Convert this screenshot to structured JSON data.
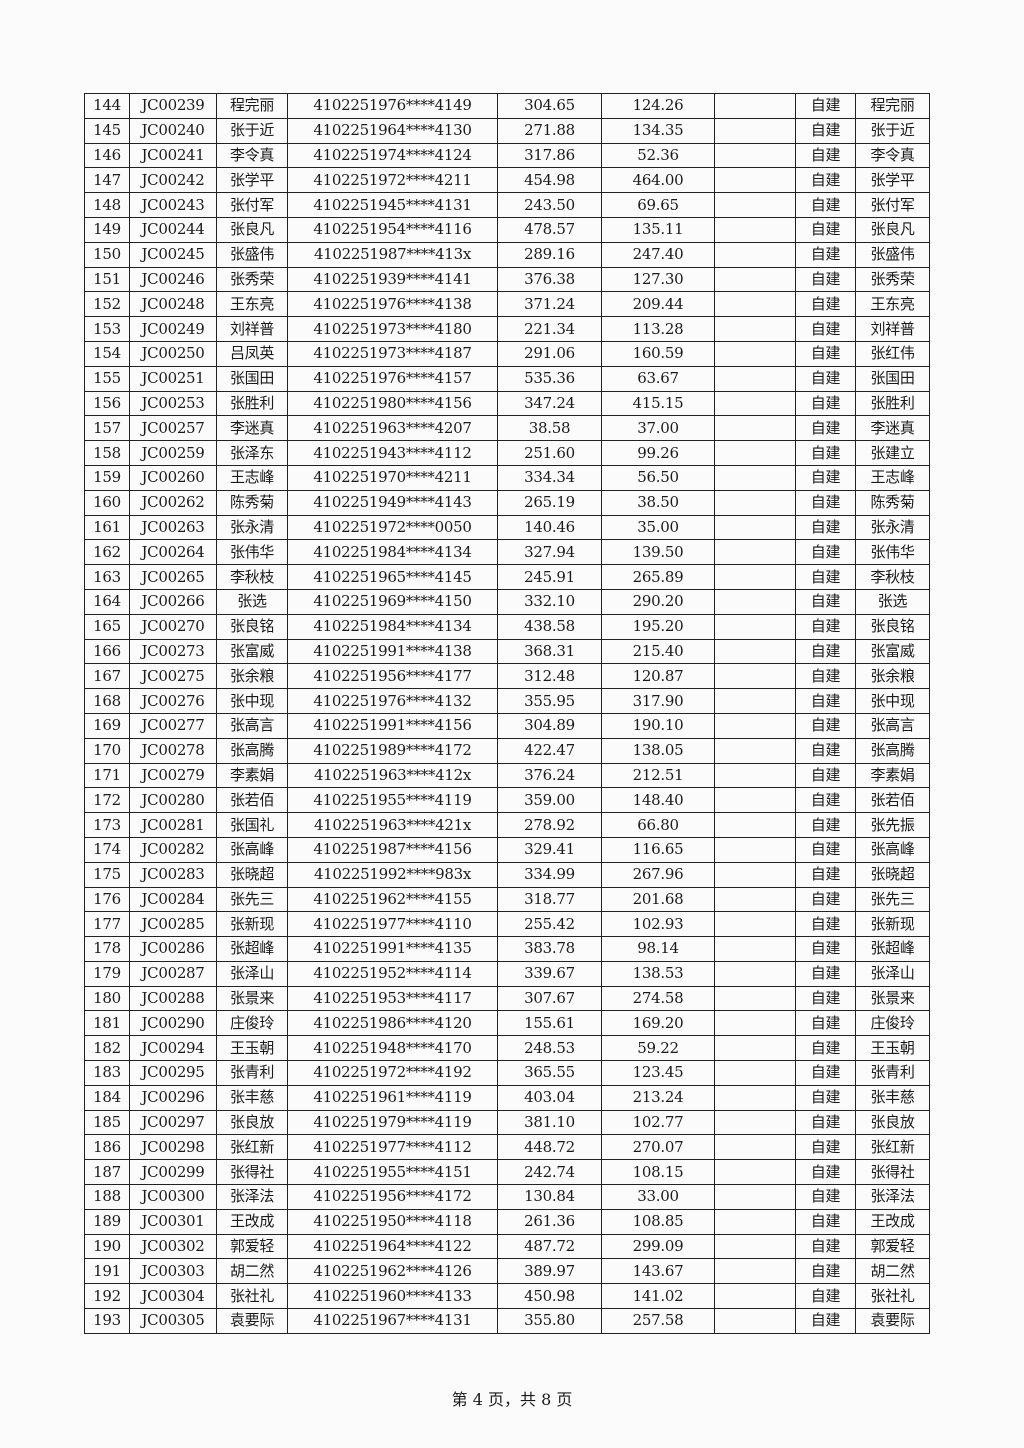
{
  "rows": [
    [
      "144",
      "JC00239",
      "程完丽",
      "4102251976****4149",
      "304.65",
      "124.26",
      "",
      "自建",
      "程完丽"
    ],
    [
      "145",
      "JC00240",
      "张于近",
      "4102251964****4130",
      "271.88",
      "134.35",
      "",
      "自建",
      "张于近"
    ],
    [
      "146",
      "JC00241",
      "李令真",
      "4102251974****4124",
      "317.86",
      "52.36",
      "",
      "自建",
      "李令真"
    ],
    [
      "147",
      "JC00242",
      "张学平",
      "4102251972****4211",
      "454.98",
      "464.00",
      "",
      "自建",
      "张学平"
    ],
    [
      "148",
      "JC00243",
      "张付军",
      "4102251945****4131",
      "243.50",
      "69.65",
      "",
      "自建",
      "张付军"
    ],
    [
      "149",
      "JC00244",
      "张良凡",
      "4102251954****4116",
      "478.57",
      "135.11",
      "",
      "自建",
      "张良凡"
    ],
    [
      "150",
      "JC00245",
      "张盛伟",
      "4102251987****413x",
      "289.16",
      "247.40",
      "",
      "自建",
      "张盛伟"
    ],
    [
      "151",
      "JC00246",
      "张秀荣",
      "4102251939****4141",
      "376.38",
      "127.30",
      "",
      "自建",
      "张秀荣"
    ],
    [
      "152",
      "JC00248",
      "王东亮",
      "4102251976****4138",
      "371.24",
      "209.44",
      "",
      "自建",
      "王东亮"
    ],
    [
      "153",
      "JC00249",
      "刘祥普",
      "4102251973****4180",
      "221.34",
      "113.28",
      "",
      "自建",
      "刘祥普"
    ],
    [
      "154",
      "JC00250",
      "吕凤英",
      "4102251973****4187",
      "291.06",
      "160.59",
      "",
      "自建",
      "张红伟"
    ],
    [
      "155",
      "JC00251",
      "张国田",
      "4102251976****4157",
      "535.36",
      "63.67",
      "",
      "自建",
      "张国田"
    ],
    [
      "156",
      "JC00253",
      "张胜利",
      "4102251980****4156",
      "347.24",
      "415.15",
      "",
      "自建",
      "张胜利"
    ],
    [
      "157",
      "JC00257",
      "李迷真",
      "4102251963****4207",
      "38.58",
      "37.00",
      "",
      "自建",
      "李迷真"
    ],
    [
      "158",
      "JC00259",
      "张泽东",
      "4102251943****4112",
      "251.60",
      "99.26",
      "",
      "自建",
      "张建立"
    ],
    [
      "159",
      "JC00260",
      "王志峰",
      "4102251970****4211",
      "334.34",
      "56.50",
      "",
      "自建",
      "王志峰"
    ],
    [
      "160",
      "JC00262",
      "陈秀菊",
      "4102251949****4143",
      "265.19",
      "38.50",
      "",
      "自建",
      "陈秀菊"
    ],
    [
      "161",
      "JC00263",
      "张永清",
      "4102251972****0050",
      "140.46",
      "35.00",
      "",
      "自建",
      "张永清"
    ],
    [
      "162",
      "JC00264",
      "张伟华",
      "4102251984****4134",
      "327.94",
      "139.50",
      "",
      "自建",
      "张伟华"
    ],
    [
      "163",
      "JC00265",
      "李秋枝",
      "4102251965****4145",
      "245.91",
      "265.89",
      "",
      "自建",
      "李秋枝"
    ],
    [
      "164",
      "JC00266",
      "张选",
      "4102251969****4150",
      "332.10",
      "290.20",
      "",
      "自建",
      "张选"
    ],
    [
      "165",
      "JC00270",
      "张良铭",
      "4102251984****4134",
      "438.58",
      "195.20",
      "",
      "自建",
      "张良铭"
    ],
    [
      "166",
      "JC00273",
      "张富威",
      "4102251991****4138",
      "368.31",
      "215.40",
      "",
      "自建",
      "张富威"
    ],
    [
      "167",
      "JC00275",
      "张余粮",
      "4102251956****4177",
      "312.48",
      "120.87",
      "",
      "自建",
      "张余粮"
    ],
    [
      "168",
      "JC00276",
      "张中现",
      "4102251976****4132",
      "355.95",
      "317.90",
      "",
      "自建",
      "张中现"
    ],
    [
      "169",
      "JC00277",
      "张高言",
      "4102251991****4156",
      "304.89",
      "190.10",
      "",
      "自建",
      "张高言"
    ],
    [
      "170",
      "JC00278",
      "张高腾",
      "4102251989****4172",
      "422.47",
      "138.05",
      "",
      "自建",
      "张高腾"
    ],
    [
      "171",
      "JC00279",
      "李素娟",
      "4102251963****412x",
      "376.24",
      "212.51",
      "",
      "自建",
      "李素娟"
    ],
    [
      "172",
      "JC00280",
      "张若佰",
      "4102251955****4119",
      "359.00",
      "148.40",
      "",
      "自建",
      "张若佰"
    ],
    [
      "173",
      "JC00281",
      "张国礼",
      "4102251963****421x",
      "278.92",
      "66.80",
      "",
      "自建",
      "张先振"
    ],
    [
      "174",
      "JC00282",
      "张高峰",
      "4102251987****4156",
      "329.41",
      "116.65",
      "",
      "自建",
      "张高峰"
    ],
    [
      "175",
      "JC00283",
      "张晓超",
      "4102251992****983x",
      "334.99",
      "267.96",
      "",
      "自建",
      "张晓超"
    ],
    [
      "176",
      "JC00284",
      "张先三",
      "4102251962****4155",
      "318.77",
      "201.68",
      "",
      "自建",
      "张先三"
    ],
    [
      "177",
      "JC00285",
      "张新现",
      "4102251977****4110",
      "255.42",
      "102.93",
      "",
      "自建",
      "张新现"
    ],
    [
      "178",
      "JC00286",
      "张超峰",
      "4102251991****4135",
      "383.78",
      "98.14",
      "",
      "自建",
      "张超峰"
    ],
    [
      "179",
      "JC00287",
      "张泽山",
      "4102251952****4114",
      "339.67",
      "138.53",
      "",
      "自建",
      "张泽山"
    ],
    [
      "180",
      "JC00288",
      "张景来",
      "4102251953****4117",
      "307.67",
      "274.58",
      "",
      "自建",
      "张景来"
    ],
    [
      "181",
      "JC00290",
      "庄俊玲",
      "4102251986****4120",
      "155.61",
      "169.20",
      "",
      "自建",
      "庄俊玲"
    ],
    [
      "182",
      "JC00294",
      "王玉朝",
      "4102251948****4170",
      "248.53",
      "59.22",
      "",
      "自建",
      "王玉朝"
    ],
    [
      "183",
      "JC00295",
      "张青利",
      "4102251972****4192",
      "365.55",
      "123.45",
      "",
      "自建",
      "张青利"
    ],
    [
      "184",
      "JC00296",
      "张丰慈",
      "4102251961****4119",
      "403.04",
      "213.24",
      "",
      "自建",
      "张丰慈"
    ],
    [
      "185",
      "JC00297",
      "张良放",
      "4102251979****4119",
      "381.10",
      "102.77",
      "",
      "自建",
      "张良放"
    ],
    [
      "186",
      "JC00298",
      "张红新",
      "4102251977****4112",
      "448.72",
      "270.07",
      "",
      "自建",
      "张红新"
    ],
    [
      "187",
      "JC00299",
      "张得社",
      "4102251955****4151",
      "242.74",
      "108.15",
      "",
      "自建",
      "张得社"
    ],
    [
      "188",
      "JC00300",
      "张泽法",
      "4102251956****4172",
      "130.84",
      "33.00",
      "",
      "自建",
      "张泽法"
    ],
    [
      "189",
      "JC00301",
      "王改成",
      "4102251950****4118",
      "261.36",
      "108.85",
      "",
      "自建",
      "王改成"
    ],
    [
      "190",
      "JC00302",
      "郭爱轻",
      "4102251964****4122",
      "487.72",
      "299.09",
      "",
      "自建",
      "郭爱轻"
    ],
    [
      "191",
      "JC00303",
      "胡二然",
      "4102251962****4126",
      "389.97",
      "143.67",
      "",
      "自建",
      "胡二然"
    ],
    [
      "192",
      "JC00304",
      "张社礼",
      "4102251960****4133",
      "450.98",
      "141.02",
      "",
      "自建",
      "张社礼"
    ],
    [
      "193",
      "JC00305",
      "袁要际",
      "4102251967****4131",
      "355.80",
      "257.58",
      "",
      "自建",
      "袁要际"
    ]
  ],
  "footer": {
    "page_label": "第 4 页，共 8 页"
  }
}
